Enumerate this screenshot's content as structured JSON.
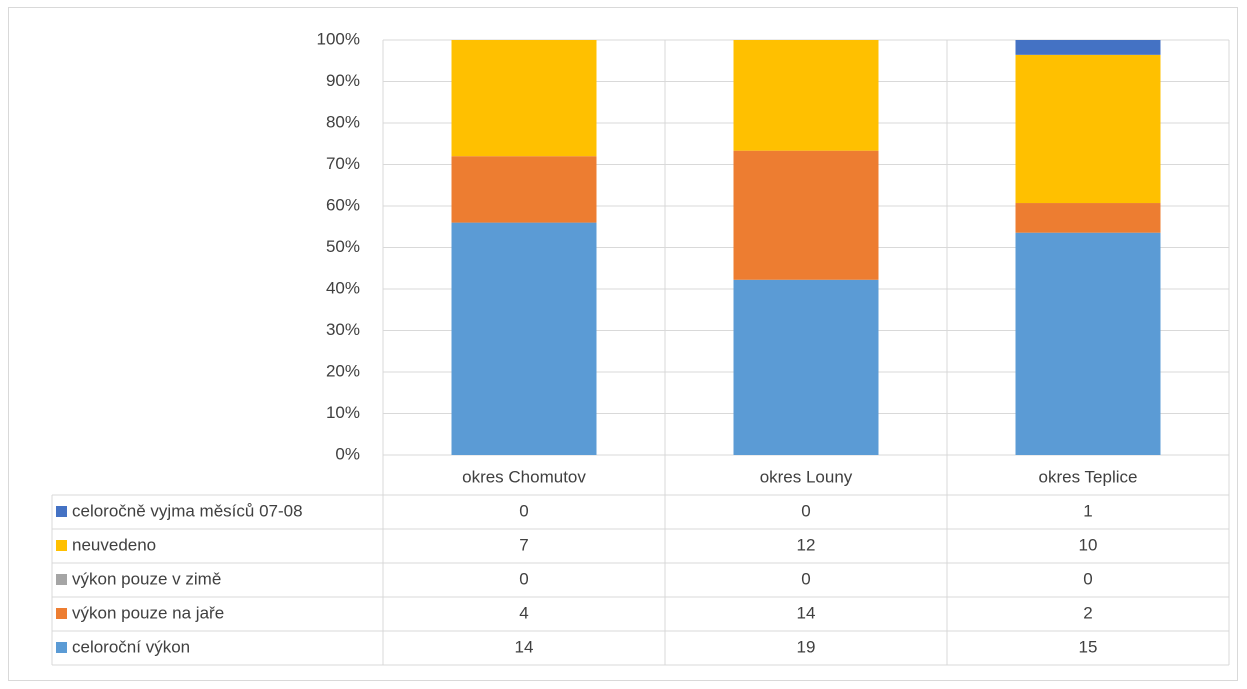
{
  "chart_data": {
    "type": "bar",
    "stacked": true,
    "percent": true,
    "title": "",
    "xlabel": "",
    "ylabel": "",
    "ylim": [
      0,
      100
    ],
    "yticks": [
      "0%",
      "10%",
      "20%",
      "30%",
      "40%",
      "50%",
      "60%",
      "70%",
      "80%",
      "90%",
      "100%"
    ],
    "grid": true,
    "legend": "data-table-left",
    "categories": [
      "okres Chomutov",
      "okres Louny",
      "okres Teplice"
    ],
    "series": [
      {
        "name": "celoroční výkon",
        "color": "#5b9bd5",
        "values": [
          14,
          19,
          15
        ]
      },
      {
        "name": "výkon pouze na jaře",
        "color": "#ed7d31",
        "values": [
          4,
          14,
          2
        ]
      },
      {
        "name": "výkon pouze v zimě",
        "color": "#a5a5a5",
        "values": [
          0,
          0,
          0
        ]
      },
      {
        "name": "neuvedeno",
        "color": "#ffc000",
        "values": [
          7,
          12,
          10
        ]
      },
      {
        "name": "celoročně vyjma měsíců 07-08",
        "color": "#4472c4",
        "values": [
          0,
          0,
          1
        ]
      }
    ]
  }
}
